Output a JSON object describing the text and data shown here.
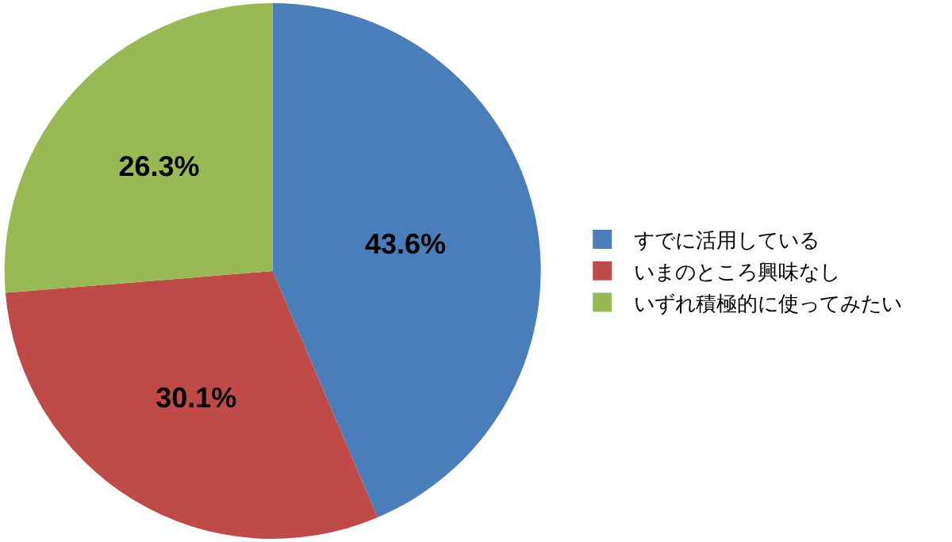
{
  "chart_data": {
    "type": "pie",
    "categories": [
      "すでに活用している",
      "いまのところ興味なし",
      "いずれ積極的に使ってみたい"
    ],
    "values": [
      43.6,
      30.1,
      26.3
    ],
    "value_labels": [
      "43.6%",
      "30.1%",
      "26.3%"
    ],
    "colors": [
      "#4a7ebb",
      "#be4b48",
      "#98b954"
    ],
    "legend": "right"
  }
}
